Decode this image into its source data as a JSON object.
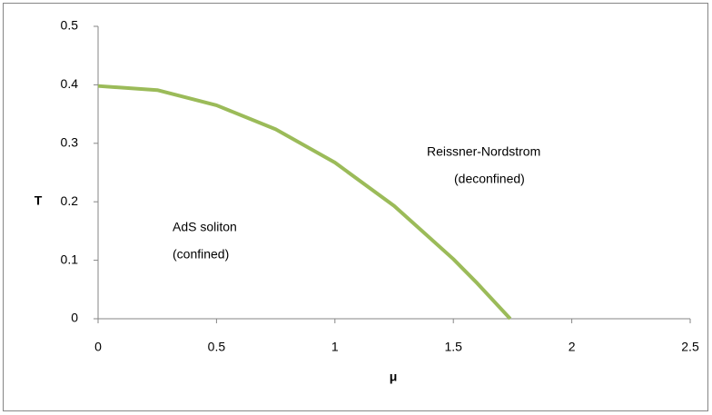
{
  "chart_data": {
    "type": "line",
    "x_label": "μ",
    "y_label": "T",
    "annotations": [
      "Reissner-Nordstrom",
      "(deconfined)",
      "AdS soliton",
      "(confined)"
    ],
    "x": [
      0,
      0.25,
      0.5,
      0.75,
      1.0,
      1.25,
      1.5,
      1.6,
      1.74
    ],
    "series": [
      {
        "name": "T",
        "color": "#9bbb59",
        "values": [
          0.398,
          0.391,
          0.365,
          0.324,
          0.267,
          0.193,
          0.102,
          0.061,
          0
        ]
      }
    ],
    "xlim": [
      0,
      2.5
    ],
    "xticks": [
      0,
      0.5,
      1,
      1.5,
      2,
      2.5
    ],
    "ylim": [
      0,
      0.5
    ],
    "yticks": [
      0,
      0.1,
      0.2,
      0.3,
      0.4,
      0.5
    ],
    "grid": false,
    "legend": false
  }
}
